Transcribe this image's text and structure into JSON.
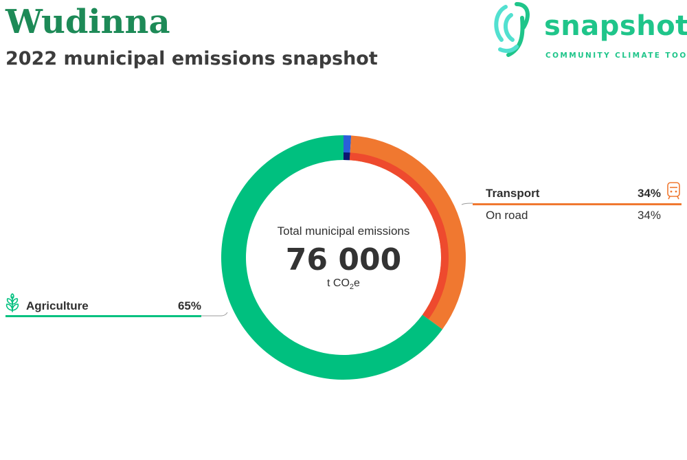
{
  "header": {
    "title": "Wudinna",
    "subtitle": "2022 municipal emissions snapshot"
  },
  "logo": {
    "word": "snapshot",
    "tagline": "COMMUNITY CLIMATE TOOL",
    "icon": "fingerprint-icon",
    "colors": {
      "dark": "#1fc58a",
      "light": "#52e0d0"
    }
  },
  "chart_data": {
    "type": "pie",
    "variant": "donut",
    "center": {
      "label": "Total municipal emissions",
      "value": "76 000",
      "unit_prefix": "t CO",
      "unit_subscript": "2",
      "unit_suffix": "e"
    },
    "slices": [
      {
        "name": "Agriculture",
        "value": 65,
        "percent_label": "65%",
        "color": "#00c07f",
        "icon": "sprout-icon"
      },
      {
        "name": "Transport",
        "value": 34,
        "percent_label": "34%",
        "color": "#f07830",
        "icon": "train-icon"
      },
      {
        "name": "",
        "value": 1,
        "color": "#2b5fd9"
      }
    ],
    "inner_ring": [
      {
        "name": "On road",
        "value": 34,
        "percent_label": "34%",
        "color": "#ee4a2e",
        "parent": "Transport"
      },
      {
        "name": "",
        "value": 1,
        "color": "#0b1870"
      }
    ],
    "legend_placement": "callouts"
  }
}
